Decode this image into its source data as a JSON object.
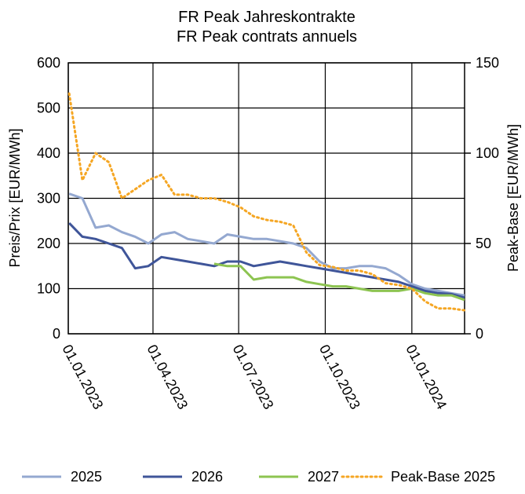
{
  "chart_data": {
    "type": "line",
    "title": "FR Peak Jahreskontrakte",
    "subtitle": "FR Peak contrats annuels",
    "y_label": "Preis/Prix [EUR/MWh]",
    "y2_label": "Peak-Base [EUR/MWh]",
    "x": [
      "2023-01-02",
      "2023-01-16",
      "2023-01-30",
      "2023-02-13",
      "2023-02-27",
      "2023-03-13",
      "2023-03-27",
      "2023-04-10",
      "2023-04-24",
      "2023-05-08",
      "2023-05-22",
      "2023-06-05",
      "2023-06-19",
      "2023-07-03",
      "2023-07-17",
      "2023-07-31",
      "2023-08-14",
      "2023-08-28",
      "2023-09-11",
      "2023-09-25",
      "2023-10-09",
      "2023-10-23",
      "2023-11-06",
      "2023-11-20",
      "2023-12-04",
      "2023-12-18",
      "2024-01-01",
      "2024-01-15",
      "2024-01-29",
      "2024-02-12",
      "2024-02-26"
    ],
    "series": [
      {
        "name": "2025",
        "color": "#94a8d0",
        "linestyle": "solid",
        "values": [
          310,
          300,
          235,
          240,
          225,
          215,
          200,
          220,
          225,
          210,
          205,
          200,
          220,
          215,
          210,
          210,
          205,
          200,
          190,
          160,
          145,
          145,
          150,
          150,
          145,
          130,
          110,
          100,
          95,
          90,
          85
        ]
      },
      {
        "name": "2026",
        "color": "#3f5599",
        "linestyle": "solid",
        "values": [
          245,
          215,
          210,
          200,
          190,
          145,
          150,
          170,
          165,
          160,
          155,
          150,
          160,
          160,
          150,
          155,
          160,
          155,
          150,
          145,
          140,
          135,
          130,
          125,
          120,
          115,
          105,
          95,
          90,
          88,
          80
        ]
      },
      {
        "name": "2027",
        "color": "#8dc451",
        "linestyle": "solid",
        "values": [
          null,
          null,
          null,
          null,
          null,
          null,
          null,
          null,
          null,
          null,
          null,
          155,
          150,
          150,
          120,
          125,
          125,
          125,
          115,
          110,
          105,
          105,
          100,
          95,
          95,
          95,
          100,
          90,
          85,
          85,
          75
        ]
      },
      {
        "name": "Peak-Base 2025",
        "color": "#f5a623",
        "linestyle": "dotted",
        "axis": "y2",
        "values": [
          133,
          85,
          100,
          95,
          75,
          80,
          85,
          88,
          77,
          77,
          75,
          75,
          73,
          70,
          65,
          63,
          62,
          60,
          45,
          38,
          37,
          35,
          35,
          33,
          28,
          27,
          25,
          18,
          14,
          14,
          13
        ]
      }
    ],
    "xlim": [
      "2023-01-01",
      "2024-02-26"
    ],
    "xticks": [
      {
        "value": "2023-01-01",
        "label": "01.01.2023"
      },
      {
        "value": "2023-04-01",
        "label": "01.04.2023"
      },
      {
        "value": "2023-07-01",
        "label": "01.07.2023"
      },
      {
        "value": "2023-10-01",
        "label": "01.10.2023"
      },
      {
        "value": "2024-01-01",
        "label": "01.01.2024"
      }
    ],
    "ylim": [
      0,
      600
    ],
    "yticks": [
      0,
      100,
      200,
      300,
      400,
      500,
      600
    ],
    "y2lim": [
      0,
      150
    ],
    "y2ticks": [
      0,
      50,
      100,
      150
    ],
    "grid": true,
    "legend": "bottom"
  }
}
